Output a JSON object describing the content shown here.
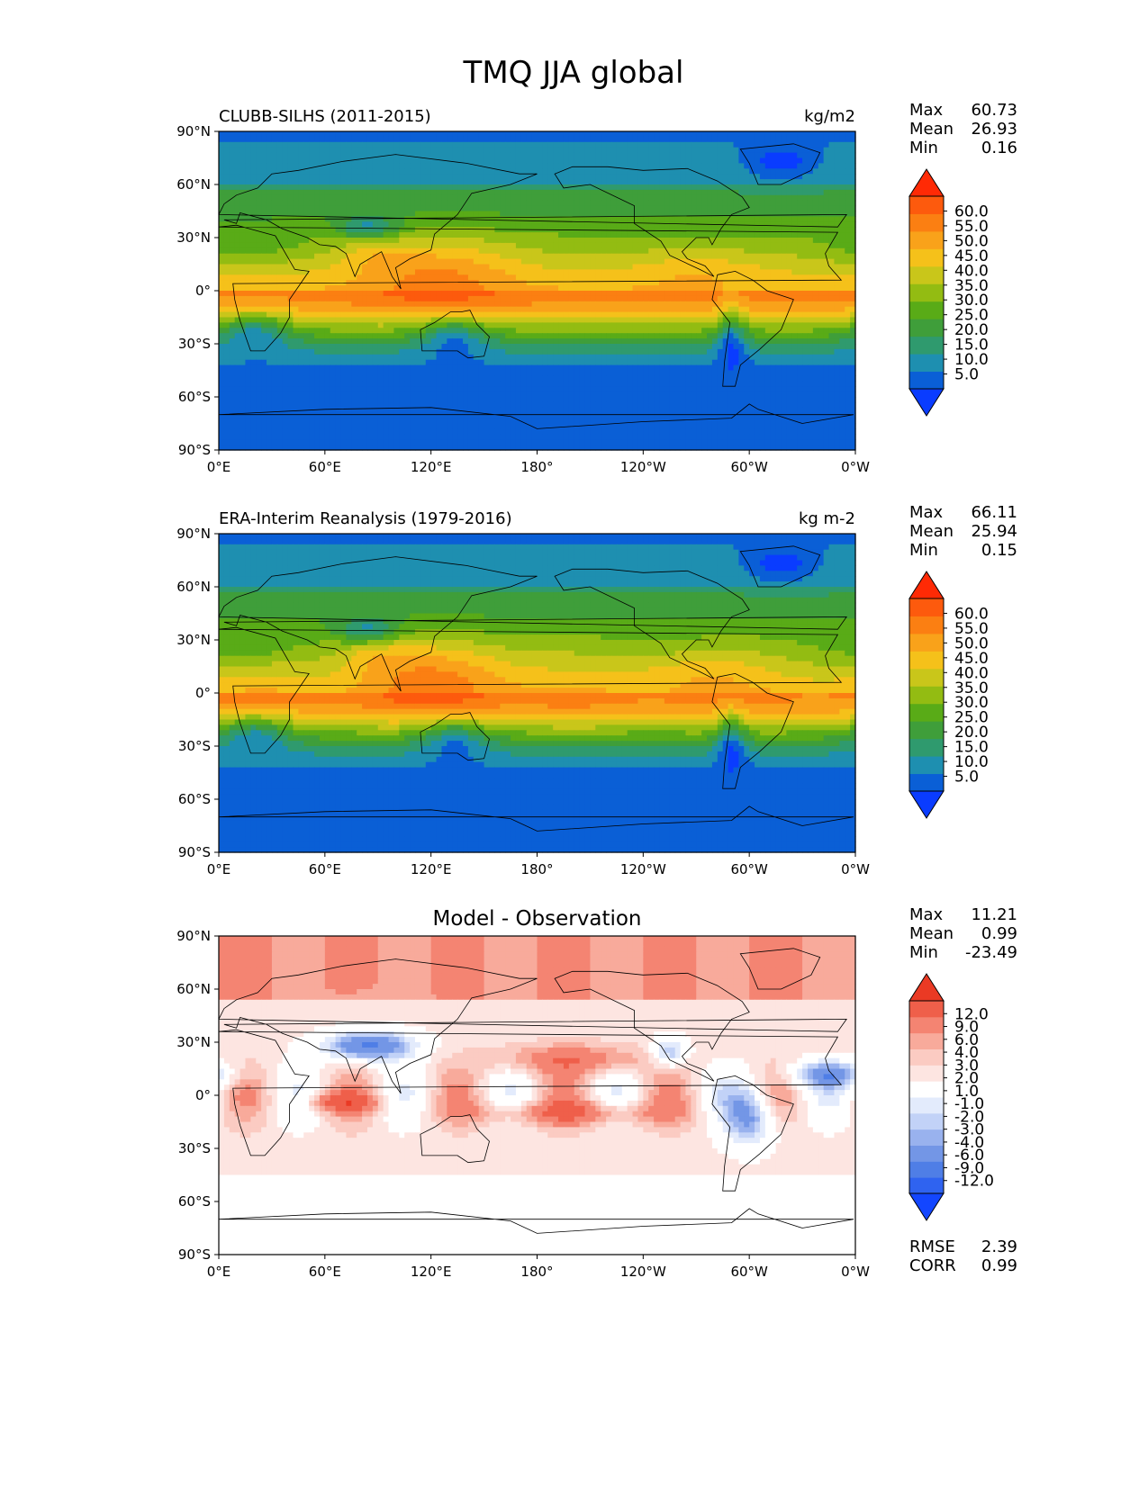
{
  "figure": {
    "title": "TMQ JJA global"
  },
  "colors": {
    "abs_levels": [
      "#0a3cff",
      "#0a5fd6",
      "#1e8fb0",
      "#2f9a6e",
      "#3f9e3a",
      "#59ab17",
      "#93bc12",
      "#c9c61a",
      "#f5c11a",
      "#f9a21a",
      "#fb7f12",
      "#fd5a0d",
      "#ff2a05"
    ],
    "abs_over": "#ff2a05",
    "abs_under": "#0a3cff",
    "diff_levels": [
      "#1346ff",
      "#2f63f0",
      "#4f7ee6",
      "#7396e6",
      "#99b2ee",
      "#c2d2f7",
      "#e3ebfc",
      "#ffffff",
      "#fde5e1",
      "#fbcbc2",
      "#f8aa9b",
      "#f48472",
      "#ef5f4a",
      "#ea3a24"
    ],
    "diff_over": "#ff2a05",
    "diff_under": "#1346ff",
    "land_outline": "#000000"
  },
  "chart_data": [
    {
      "type": "heatmap",
      "title_left": "CLUBB-SILHS (2011-2015)",
      "title_center": "",
      "units": "kg/m2",
      "xlabel": "",
      "ylabel": "",
      "xticks": [
        "0°E",
        "60°E",
        "120°E",
        "180°",
        "120°W",
        "60°W",
        "0°W"
      ],
      "yticks": [
        "90°N",
        "60°N",
        "30°N",
        "0°",
        "30°S",
        "60°S",
        "90°S"
      ],
      "xlim": [
        0,
        360
      ],
      "ylim": [
        -90,
        90
      ],
      "colorbar_ticks": [
        "60.0",
        "55.0",
        "50.0",
        "45.0",
        "40.0",
        "35.0",
        "30.0",
        "25.0",
        "20.0",
        "15.0",
        "10.0",
        "5.0"
      ],
      "stats": [
        {
          "label": "Max",
          "value": "60.73"
        },
        {
          "label": "Mean",
          "value": "26.93"
        },
        {
          "label": "Min",
          "value": "0.16"
        }
      ]
    },
    {
      "type": "heatmap",
      "title_left": "ERA-Interim Reanalysis (1979-2016)",
      "title_center": "",
      "units": "kg m-2",
      "xlabel": "",
      "ylabel": "",
      "xticks": [
        "0°E",
        "60°E",
        "120°E",
        "180°",
        "120°W",
        "60°W",
        "0°W"
      ],
      "yticks": [
        "90°N",
        "60°N",
        "30°N",
        "0°",
        "30°S",
        "60°S",
        "90°S"
      ],
      "xlim": [
        0,
        360
      ],
      "ylim": [
        -90,
        90
      ],
      "colorbar_ticks": [
        "60.0",
        "55.0",
        "50.0",
        "45.0",
        "40.0",
        "35.0",
        "30.0",
        "25.0",
        "20.0",
        "15.0",
        "10.0",
        "5.0"
      ],
      "stats": [
        {
          "label": "Max",
          "value": "66.11"
        },
        {
          "label": "Mean",
          "value": "25.94"
        },
        {
          "label": "Min",
          "value": "0.15"
        }
      ]
    },
    {
      "type": "heatmap",
      "title_left": "",
      "title_center": "Model - Observation",
      "units": "",
      "xlabel": "",
      "ylabel": "",
      "xticks": [
        "0°E",
        "60°E",
        "120°E",
        "180°",
        "120°W",
        "60°W",
        "0°W"
      ],
      "yticks": [
        "90°N",
        "60°N",
        "30°N",
        "0°",
        "30°S",
        "60°S",
        "90°S"
      ],
      "xlim": [
        0,
        360
      ],
      "ylim": [
        -90,
        90
      ],
      "colorbar_ticks": [
        "12.0",
        "9.0",
        "6.0",
        "4.0",
        "3.0",
        "2.0",
        "1.0",
        "-1.0",
        "-2.0",
        "-3.0",
        "-4.0",
        "-6.0",
        "-9.0",
        "-12.0"
      ],
      "stats": [
        {
          "label": "Max",
          "value": "11.21"
        },
        {
          "label": "Mean",
          "value": "0.99"
        },
        {
          "label": "Min",
          "value": "-23.49"
        }
      ],
      "metrics": [
        {
          "label": "RMSE",
          "value": "2.39"
        },
        {
          "label": "CORR",
          "value": "0.99"
        }
      ]
    }
  ]
}
